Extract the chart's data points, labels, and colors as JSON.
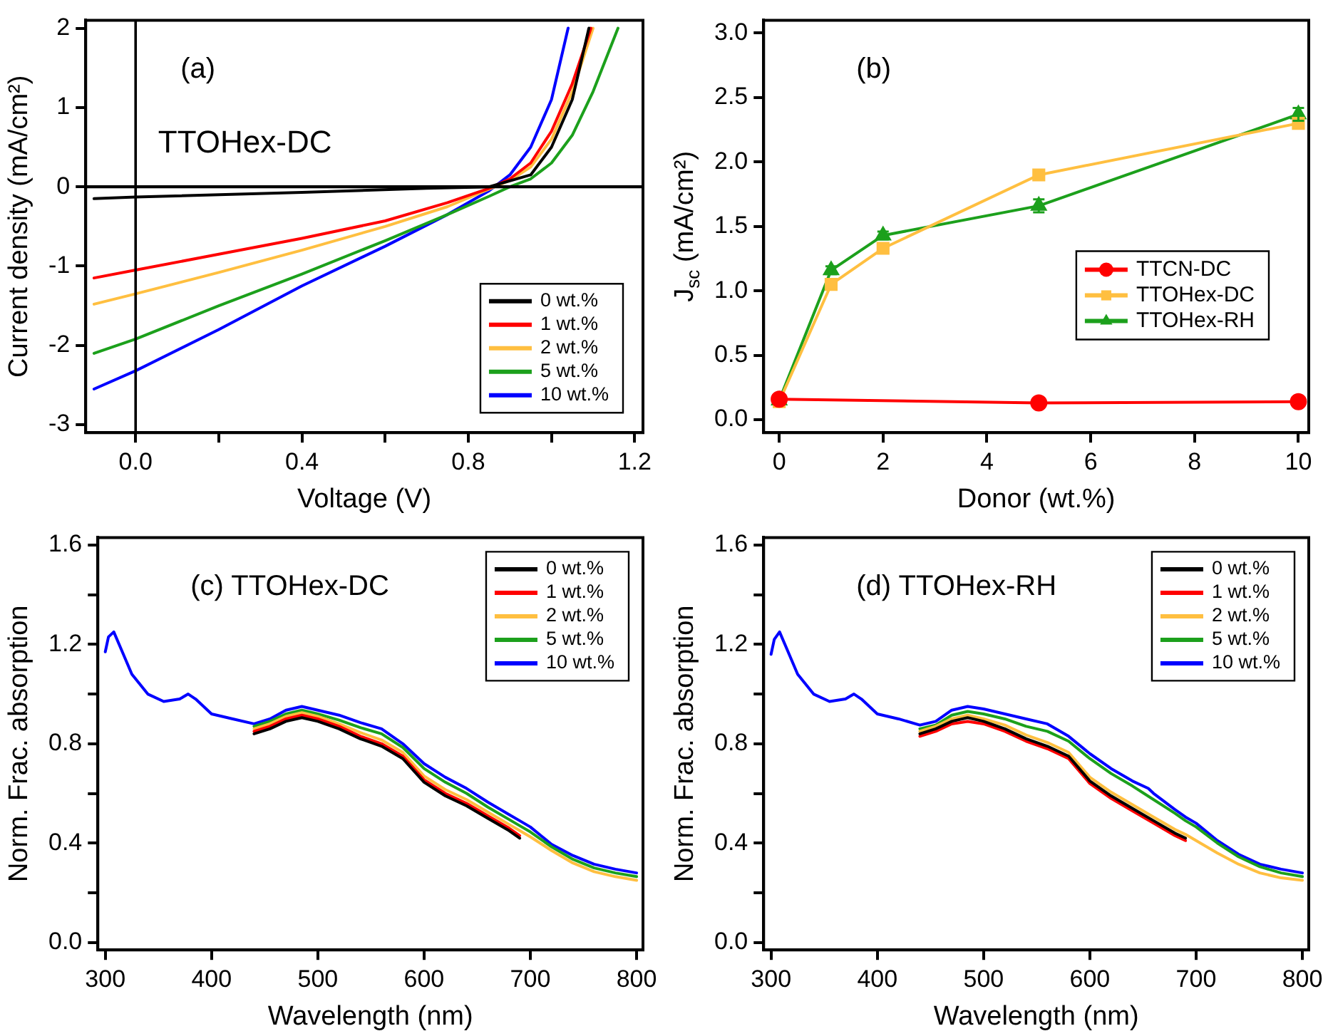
{
  "chart_data": [
    {
      "type": "line",
      "xlabel": "Voltage (V)",
      "ylabel": "Current density (mA/cm²)",
      "annotations": [
        "(a)",
        "TTOHex-DC"
      ],
      "xlim": [
        -0.12,
        1.22
      ],
      "ylim": [
        -3.1,
        2.1
      ],
      "xticks": [
        {
          "value": 0,
          "label": "0.0"
        },
        {
          "value": 0.2,
          "label": null
        },
        {
          "value": 0.4,
          "label": "0.4"
        },
        {
          "value": 0.6,
          "label": null
        },
        {
          "value": 0.8,
          "label": "0.8"
        },
        {
          "value": 1.0,
          "label": null
        },
        {
          "value": 1.2,
          "label": "1.2"
        }
      ],
      "yticks": [
        -3,
        -2,
        -1,
        0,
        1,
        2
      ],
      "ref_lines": [
        {
          "axis": "x",
          "value": 0,
          "color": "#000000"
        },
        {
          "axis": "y",
          "value": 0,
          "color": "#000000"
        }
      ],
      "grid": false,
      "legend": "bottom right",
      "marker": "none",
      "line_style": "solid",
      "series": [
        {
          "name": "0 wt.%",
          "color": "#000000",
          "x": [
            -0.1,
            0,
            0.4,
            0.7,
            0.85,
            0.95,
            1.0,
            1.05,
            1.09
          ],
          "values": [
            -0.15,
            -0.13,
            -0.07,
            -0.02,
            0,
            0.15,
            0.5,
            1.1,
            2
          ]
        },
        {
          "name": "1 wt.%",
          "color": "#ff0000",
          "x": [
            -0.1,
            0,
            0.2,
            0.4,
            0.6,
            0.75,
            0.85,
            0.9,
            0.95,
            1.0,
            1.05,
            1.095
          ],
          "values": [
            -1.15,
            -1.05,
            -0.85,
            -0.65,
            -0.43,
            -0.2,
            -0.02,
            0.1,
            0.3,
            0.7,
            1.3,
            2
          ]
        },
        {
          "name": "2 wt.%",
          "color": "#ffbf40",
          "x": [
            -0.1,
            0,
            0.2,
            0.4,
            0.6,
            0.75,
            0.85,
            0.9,
            0.95,
            1.0,
            1.05,
            1.1
          ],
          "values": [
            -1.48,
            -1.35,
            -1.08,
            -0.8,
            -0.5,
            -0.25,
            -0.03,
            0.08,
            0.25,
            0.6,
            1.2,
            2
          ]
        },
        {
          "name": "5 wt.%",
          "color": "#1ca01c",
          "x": [
            -0.1,
            0,
            0.2,
            0.4,
            0.6,
            0.75,
            0.85,
            0.9,
            0.95,
            1.0,
            1.05,
            1.1,
            1.16
          ],
          "values": [
            -2.1,
            -1.92,
            -1.5,
            -1.1,
            -0.68,
            -0.35,
            -0.12,
            0,
            0.1,
            0.3,
            0.65,
            1.2,
            2
          ]
        },
        {
          "name": "10 wt.%",
          "color": "#0000ff",
          "x": [
            -0.1,
            0,
            0.2,
            0.4,
            0.6,
            0.75,
            0.85,
            0.9,
            0.95,
            1.0,
            1.04
          ],
          "values": [
            -2.55,
            -2.32,
            -1.8,
            -1.25,
            -0.75,
            -0.35,
            -0.05,
            0.15,
            0.5,
            1.1,
            2
          ]
        }
      ]
    },
    {
      "type": "line",
      "xlabel": "Donor (wt.%)",
      "ylabel": "J$_{sc}$ (mA/cm²)",
      "annotations": [
        "(b)"
      ],
      "xlim": [
        -0.3,
        10.2
      ],
      "ylim": [
        -0.1,
        3.1
      ],
      "xticks": [
        0,
        2,
        4,
        6,
        8,
        10
      ],
      "yticks": [
        {
          "value": 0,
          "label": "0.0"
        },
        {
          "value": 0.5,
          "label": "0.5"
        },
        {
          "value": 1,
          "label": "1.0"
        },
        {
          "value": 1.5,
          "label": "1.5"
        },
        {
          "value": 2,
          "label": "2.0"
        },
        {
          "value": 2.5,
          "label": "2.5"
        },
        {
          "value": 3,
          "label": "3.0"
        }
      ],
      "grid": false,
      "legend": "right",
      "line_style": "solid",
      "series": [
        {
          "name": "TTCN-DC",
          "color": "#ff0000",
          "marker": "circle",
          "x": [
            0,
            5,
            10
          ],
          "values": [
            0.16,
            0.13,
            0.14
          ]
        },
        {
          "name": "TTOHex-DC",
          "color": "#ffbf40",
          "marker": "square",
          "x": [
            0,
            1,
            2,
            5,
            10
          ],
          "values": [
            0.14,
            1.05,
            1.33,
            1.9,
            2.3
          ]
        },
        {
          "name": "TTOHex-RH",
          "color": "#1ca01c",
          "marker": "triangle",
          "x": [
            0,
            1,
            2,
            5,
            10
          ],
          "values": [
            0.15,
            1.16,
            1.43,
            1.66,
            2.37
          ],
          "errors": [
            null,
            0.03,
            0.03,
            0.05,
            0.05
          ]
        }
      ]
    },
    {
      "type": "line",
      "xlabel": "Wavelength (nm)",
      "ylabel": "Norm. Frac. absorption",
      "annotations": [
        "(c) TTOHex-DC"
      ],
      "xlim": [
        293,
        806
      ],
      "ylim": [
        -0.03,
        1.63
      ],
      "xticks": [
        300,
        400,
        500,
        600,
        700,
        800
      ],
      "yticks": [
        {
          "value": 0,
          "label": "0.0"
        },
        {
          "value": 0.2,
          "label": null
        },
        {
          "value": 0.4,
          "label": "0.4"
        },
        {
          "value": 0.6,
          "label": null
        },
        {
          "value": 0.8,
          "label": "0.8"
        },
        {
          "value": 1.0,
          "label": null
        },
        {
          "value": 1.2,
          "label": "1.2"
        },
        {
          "value": 1.4,
          "label": null
        },
        {
          "value": 1.6,
          "label": "1.6"
        }
      ],
      "grid": false,
      "legend": "top right",
      "marker": "none",
      "line_style": "solid",
      "series": [
        {
          "name": "0 wt.%",
          "color": "#000000",
          "x": [
            440,
            455,
            470,
            485,
            500,
            520,
            540,
            560,
            580,
            600,
            620,
            640,
            660,
            680,
            690
          ],
          "values": [
            0.84,
            0.86,
            0.89,
            0.905,
            0.89,
            0.86,
            0.82,
            0.79,
            0.74,
            0.645,
            0.59,
            0.55,
            0.5,
            0.45,
            0.42
          ]
        },
        {
          "name": "1 wt.%",
          "color": "#ff0000",
          "x": [
            440,
            455,
            470,
            485,
            500,
            520,
            540,
            560,
            580,
            600,
            620,
            640,
            660,
            680,
            690
          ],
          "values": [
            0.85,
            0.87,
            0.9,
            0.915,
            0.9,
            0.87,
            0.83,
            0.8,
            0.75,
            0.655,
            0.6,
            0.56,
            0.51,
            0.46,
            0.43
          ]
        },
        {
          "name": "2 wt.%",
          "color": "#ffbf40",
          "x": [
            440,
            455,
            470,
            485,
            500,
            520,
            540,
            560,
            580,
            600,
            620,
            640,
            660,
            680,
            690,
            700,
            720,
            740,
            760,
            780,
            800
          ],
          "values": [
            0.86,
            0.88,
            0.91,
            0.925,
            0.91,
            0.88,
            0.845,
            0.815,
            0.765,
            0.67,
            0.615,
            0.575,
            0.525,
            0.475,
            0.45,
            0.425,
            0.37,
            0.32,
            0.285,
            0.265,
            0.25
          ]
        },
        {
          "name": "5 wt.%",
          "color": "#1ca01c",
          "x": [
            440,
            455,
            470,
            485,
            500,
            520,
            540,
            560,
            580,
            600,
            620,
            640,
            660,
            680,
            690,
            700,
            720,
            740,
            760,
            780,
            800
          ],
          "values": [
            0.87,
            0.89,
            0.92,
            0.935,
            0.92,
            0.895,
            0.865,
            0.84,
            0.785,
            0.7,
            0.645,
            0.6,
            0.545,
            0.495,
            0.47,
            0.445,
            0.385,
            0.335,
            0.3,
            0.28,
            0.265
          ]
        },
        {
          "name": "10 wt.%",
          "color": "#0000ff",
          "x": [
            300,
            303,
            308,
            315,
            325,
            340,
            355,
            370,
            378,
            385,
            400,
            420,
            440,
            455,
            470,
            485,
            500,
            520,
            540,
            560,
            580,
            600,
            620,
            640,
            660,
            680,
            690,
            700,
            720,
            740,
            760,
            780,
            800
          ],
          "values": [
            1.17,
            1.23,
            1.25,
            1.18,
            1.08,
            1.0,
            0.97,
            0.98,
            1.0,
            0.98,
            0.92,
            0.9,
            0.88,
            0.9,
            0.935,
            0.95,
            0.935,
            0.915,
            0.885,
            0.86,
            0.8,
            0.72,
            0.665,
            0.62,
            0.565,
            0.515,
            0.49,
            0.465,
            0.395,
            0.35,
            0.315,
            0.295,
            0.28
          ]
        }
      ]
    },
    {
      "type": "line",
      "xlabel": "Wavelength (nm)",
      "ylabel": "Norm. Frac. absorption",
      "annotations": [
        "(d) TTOHex-RH"
      ],
      "xlim": [
        293,
        806
      ],
      "ylim": [
        -0.03,
        1.63
      ],
      "xticks": [
        300,
        400,
        500,
        600,
        700,
        800
      ],
      "yticks": [
        {
          "value": 0,
          "label": "0.0"
        },
        {
          "value": 0.2,
          "label": null
        },
        {
          "value": 0.4,
          "label": "0.4"
        },
        {
          "value": 0.6,
          "label": null
        },
        {
          "value": 0.8,
          "label": "0.8"
        },
        {
          "value": 1.0,
          "label": null
        },
        {
          "value": 1.2,
          "label": "1.2"
        },
        {
          "value": 1.4,
          "label": null
        },
        {
          "value": 1.6,
          "label": "1.6"
        }
      ],
      "grid": false,
      "legend": "top right",
      "marker": "none",
      "line_style": "solid",
      "series": [
        {
          "name": "0 wt.%",
          "color": "#000000",
          "x": [
            440,
            455,
            470,
            485,
            500,
            520,
            540,
            560,
            580,
            600,
            620,
            640,
            660,
            680,
            690
          ],
          "values": [
            0.84,
            0.86,
            0.89,
            0.905,
            0.89,
            0.86,
            0.82,
            0.79,
            0.75,
            0.65,
            0.59,
            0.54,
            0.49,
            0.44,
            0.42
          ]
        },
        {
          "name": "1 wt.%",
          "color": "#ff0000",
          "x": [
            440,
            455,
            470,
            485,
            500,
            520,
            540,
            560,
            580,
            600,
            620,
            640,
            660,
            680,
            690
          ],
          "values": [
            0.83,
            0.85,
            0.88,
            0.89,
            0.88,
            0.85,
            0.81,
            0.78,
            0.74,
            0.64,
            0.58,
            0.53,
            0.48,
            0.43,
            0.41
          ]
        },
        {
          "name": "2 wt.%",
          "color": "#ffbf40",
          "x": [
            440,
            455,
            470,
            485,
            500,
            520,
            540,
            560,
            580,
            600,
            620,
            640,
            660,
            680,
            690,
            700,
            720,
            740,
            760,
            780,
            800
          ],
          "values": [
            0.85,
            0.87,
            0.9,
            0.915,
            0.9,
            0.875,
            0.835,
            0.805,
            0.765,
            0.665,
            0.605,
            0.555,
            0.505,
            0.455,
            0.435,
            0.41,
            0.36,
            0.315,
            0.28,
            0.26,
            0.25
          ]
        },
        {
          "name": "5 wt.%",
          "color": "#1ca01c",
          "x": [
            440,
            455,
            470,
            485,
            500,
            520,
            540,
            560,
            580,
            600,
            620,
            640,
            660,
            680,
            690,
            700,
            720,
            740,
            760,
            780,
            800
          ],
          "values": [
            0.86,
            0.875,
            0.915,
            0.93,
            0.92,
            0.9,
            0.87,
            0.85,
            0.81,
            0.74,
            0.68,
            0.63,
            0.575,
            0.52,
            0.49,
            0.465,
            0.4,
            0.345,
            0.305,
            0.28,
            0.265
          ]
        },
        {
          "name": "10 wt.%",
          "color": "#0000ff",
          "x": [
            300,
            303,
            308,
            315,
            325,
            340,
            355,
            370,
            378,
            385,
            400,
            420,
            440,
            455,
            470,
            485,
            500,
            520,
            540,
            560,
            580,
            600,
            620,
            640,
            655,
            660,
            680,
            690,
            700,
            720,
            740,
            760,
            780,
            800
          ],
          "values": [
            1.16,
            1.22,
            1.25,
            1.18,
            1.08,
            1.0,
            0.97,
            0.98,
            1.0,
            0.98,
            0.92,
            0.9,
            0.875,
            0.89,
            0.935,
            0.95,
            0.94,
            0.92,
            0.9,
            0.88,
            0.83,
            0.76,
            0.7,
            0.65,
            0.62,
            0.6,
            0.535,
            0.505,
            0.48,
            0.41,
            0.355,
            0.315,
            0.295,
            0.28
          ]
        }
      ]
    }
  ]
}
